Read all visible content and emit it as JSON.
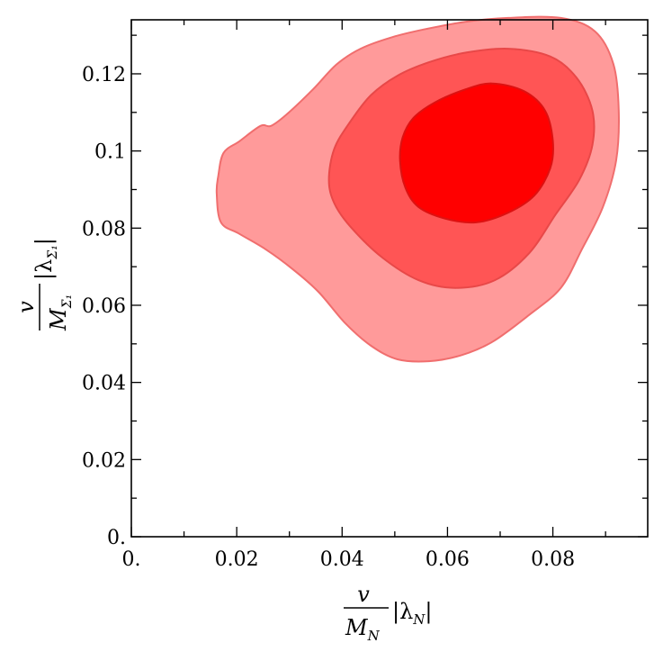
{
  "chart_data": {
    "type": "contour",
    "xlim": [
      0,
      0.098
    ],
    "ylim": [
      0,
      0.134
    ],
    "x_ticks": [
      0,
      0.02,
      0.04,
      0.06,
      0.08
    ],
    "x_tick_labels": [
      "0.",
      "0.02",
      "0.04",
      "0.06",
      "0.08"
    ],
    "y_ticks": [
      0,
      0.02,
      0.04,
      0.06,
      0.08,
      0.1,
      0.12
    ],
    "y_tick_labels": [
      "0.",
      "0.02",
      "0.04",
      "0.06",
      "0.08",
      "0.1",
      "0.12"
    ],
    "xlabel": {
      "numerator": "v",
      "denominator": "M",
      "denominator_sub": "N",
      "suffix": "|λ",
      "suffix_sub": "N",
      "suffix_end": "|"
    },
    "ylabel": {
      "numerator": "v",
      "denominator": "M",
      "denominator_sub": "Σ₁",
      "suffix": "|λ",
      "suffix_sub": "Σ₁",
      "suffix_end": "|"
    },
    "grid": false,
    "regions": [
      {
        "fill": "#ff9a9a",
        "stroke": "#f06e6e",
        "points": [
          [
            0.0162,
            0.089
          ],
          [
            0.0165,
            0.0935
          ],
          [
            0.0175,
            0.0995
          ],
          [
            0.0205,
            0.1025
          ],
          [
            0.0245,
            0.1065
          ],
          [
            0.0265,
            0.1065
          ],
          [
            0.0295,
            0.1095
          ],
          [
            0.0345,
            0.116
          ],
          [
            0.039,
            0.1225
          ],
          [
            0.0435,
            0.1265
          ],
          [
            0.0495,
            0.1295
          ],
          [
            0.0555,
            0.1315
          ],
          [
            0.0635,
            0.1335
          ],
          [
            0.0715,
            0.1345
          ],
          [
            0.0815,
            0.1345
          ],
          [
            0.088,
            0.131
          ],
          [
            0.0915,
            0.1225
          ],
          [
            0.0925,
            0.1105
          ],
          [
            0.092,
            0.0975
          ],
          [
            0.0895,
            0.0855
          ],
          [
            0.0855,
            0.0745
          ],
          [
            0.0815,
            0.0645
          ],
          [
            0.0755,
            0.0575
          ],
          [
            0.0685,
            0.0505
          ],
          [
            0.0625,
            0.047
          ],
          [
            0.0565,
            0.0455
          ],
          [
            0.0505,
            0.046
          ],
          [
            0.0455,
            0.0495
          ],
          [
            0.0405,
            0.0555
          ],
          [
            0.0355,
            0.0635
          ],
          [
            0.0305,
            0.0695
          ],
          [
            0.0255,
            0.0745
          ],
          [
            0.0205,
            0.0785
          ],
          [
            0.017,
            0.0815
          ],
          [
            0.0162,
            0.089
          ]
        ]
      },
      {
        "fill": "#ff5555",
        "stroke": "#e84848",
        "points": [
          [
            0.0375,
            0.0925
          ],
          [
            0.0385,
            0.1005
          ],
          [
            0.0415,
            0.1075
          ],
          [
            0.0455,
            0.1145
          ],
          [
            0.0505,
            0.1195
          ],
          [
            0.0565,
            0.123
          ],
          [
            0.0635,
            0.1255
          ],
          [
            0.0715,
            0.1265
          ],
          [
            0.0795,
            0.1245
          ],
          [
            0.0845,
            0.119
          ],
          [
            0.0875,
            0.1105
          ],
          [
            0.0875,
            0.1015
          ],
          [
            0.085,
            0.0925
          ],
          [
            0.0805,
            0.0835
          ],
          [
            0.0755,
            0.0735
          ],
          [
            0.069,
            0.0665
          ],
          [
            0.0615,
            0.0645
          ],
          [
            0.0545,
            0.0665
          ],
          [
            0.0475,
            0.0725
          ],
          [
            0.0415,
            0.0805
          ],
          [
            0.0385,
            0.0865
          ],
          [
            0.0375,
            0.0925
          ]
        ]
      },
      {
        "fill": "#ff0000",
        "stroke": "#dd1111",
        "points": [
          [
            0.051,
            0.0975
          ],
          [
            0.0515,
            0.1035
          ],
          [
            0.0535,
            0.1085
          ],
          [
            0.0575,
            0.1125
          ],
          [
            0.0635,
            0.116
          ],
          [
            0.0685,
            0.1175
          ],
          [
            0.0745,
            0.1155
          ],
          [
            0.0785,
            0.1105
          ],
          [
            0.08,
            0.1025
          ],
          [
            0.0795,
            0.0955
          ],
          [
            0.0765,
            0.0885
          ],
          [
            0.0715,
            0.084
          ],
          [
            0.0655,
            0.0815
          ],
          [
            0.0595,
            0.0825
          ],
          [
            0.0545,
            0.0855
          ],
          [
            0.052,
            0.0905
          ],
          [
            0.051,
            0.0975
          ]
        ]
      }
    ]
  }
}
